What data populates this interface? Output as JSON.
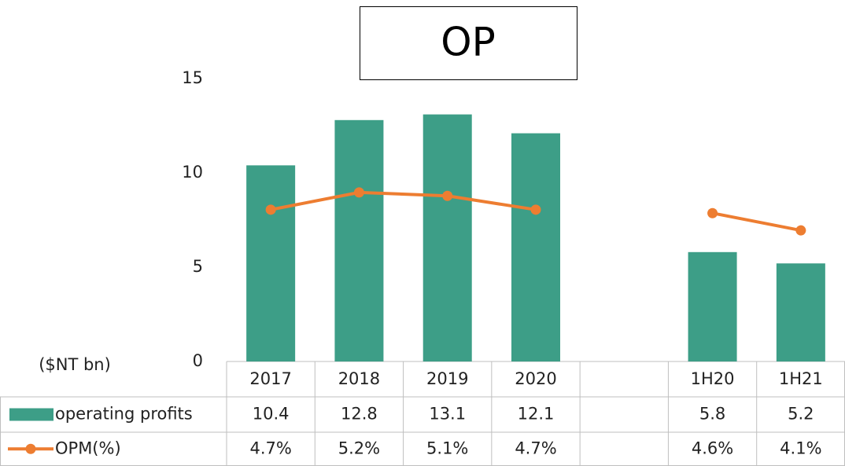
{
  "chart_data": {
    "type": "bar",
    "title": "OP",
    "y_label": "($NT bn)",
    "categories": [
      "2017",
      "2018",
      "2019",
      "2020",
      null,
      "1H20",
      "1H21"
    ],
    "series": [
      {
        "name": "operating profits",
        "type": "bar",
        "color": "#3d9e87",
        "values": [
          10.4,
          12.8,
          13.1,
          12.1,
          null,
          5.8,
          5.2
        ]
      },
      {
        "name": "OPM(%)",
        "type": "line",
        "axis": "y2",
        "color": "#ed7d31",
        "values": [
          4.7,
          5.2,
          5.1,
          4.7,
          null,
          4.6,
          4.1
        ],
        "value_labels": [
          "4.7%",
          "5.2%",
          "5.1%",
          "4.7%",
          null,
          "4.6%",
          "4.1%"
        ]
      }
    ],
    "ylim": [
      0,
      15
    ],
    "yticks": [
      0,
      5,
      10,
      15
    ],
    "y2lim": [
      0.3,
      8.5
    ],
    "grid": false
  }
}
